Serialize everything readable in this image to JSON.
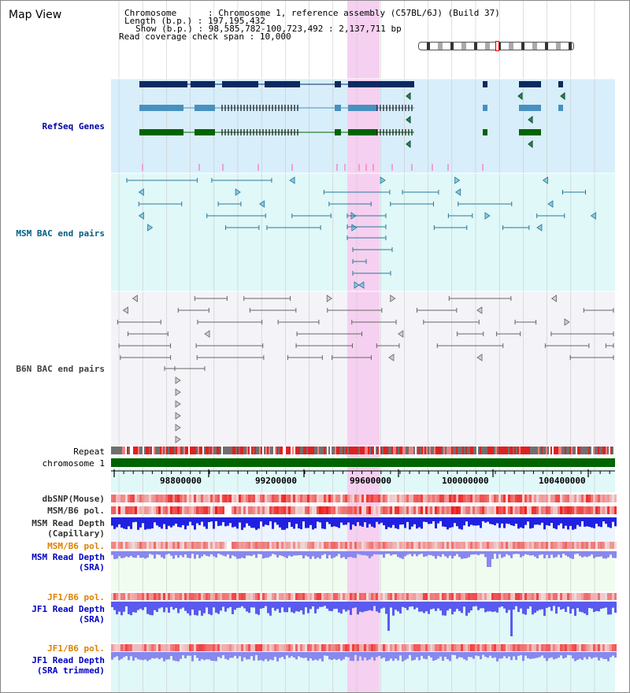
{
  "title": "Map View",
  "info": {
    "chromosome_key": "Chromosome",
    "chromosome_val": "Chromosome 1, reference assembly (C57BL/6J) (Build 37)",
    "length_key": "Length (b.p.)",
    "length_val": "197,195,432",
    "show_key": "Show (b.p.)",
    "show_val": "98,585,782-100,723,492 : 2,137,711 bp",
    "coverage_key": "Read coverage check span",
    "coverage_val": "10,000"
  },
  "tracks": {
    "refseq": "RefSeq Genes",
    "msm_bac": "MSM BAC end pairs",
    "b6n_bac": "B6N BAC end pairs",
    "repeat": "Repeat",
    "chromosome": "chromosome 1",
    "dbsnp": "dbSNP(Mouse)",
    "msm_b6_pol_1": "MSM/B6 pol.",
    "msm_depth_cap_1": "MSM Read Depth",
    "msm_depth_cap_2": "(Capillary)",
    "msm_b6_pol_2": "MSM/B6 pol.",
    "msm_depth_sra_1": "MSM Read Depth",
    "msm_depth_sra_2": "(SRA)",
    "jf1_b6_pol_1": "JF1/B6 pol.",
    "jf1_depth_sra_1": "JF1 Read Depth",
    "jf1_depth_sra_2": "(SRA)",
    "jf1_b6_pol_2": "JF1/B6 pol.",
    "jf1_depth_trim_1": "JF1 Read Depth",
    "jf1_depth_trim_2": "(SRA trimmed)"
  },
  "axis_ticks": [
    "98800000",
    "99200000",
    "99600000",
    "100000000",
    "100400000"
  ],
  "colors": {
    "refseq_label": "#0000aa",
    "msm_label": "#006080",
    "b6n_label": "#404040",
    "pol_orange": "#e08000",
    "depth_blue": "#0000c0",
    "highlight": "#f6d0f0",
    "refseq_bg": "#d8eefa",
    "msm_bg": "#e0f8f8",
    "b6n_bg": "#f4f4f8",
    "gene_dark": "#0a2a60",
    "gene_mid": "#4890c0",
    "gene_green": "#006400"
  }
}
